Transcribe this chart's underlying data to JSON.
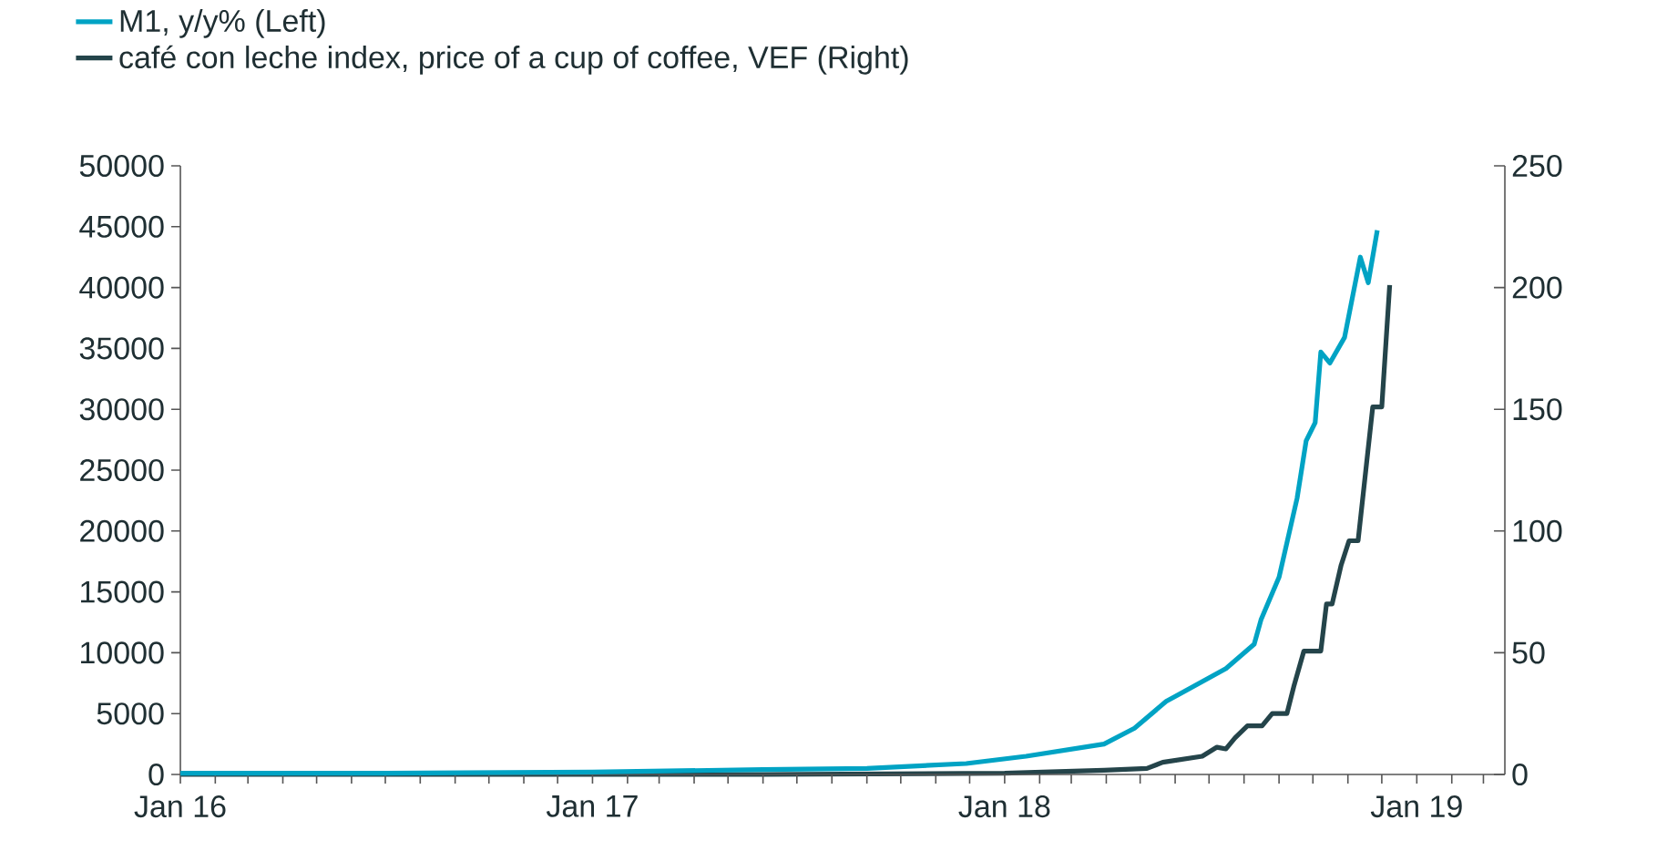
{
  "chart_data": {
    "type": "line",
    "x": [
      "2016-01-01",
      "2016-07-01",
      "2017-01-01",
      "2017-06-01",
      "2017-09-01",
      "2017-11-28",
      "2018-01-20",
      "2018-03-30",
      "2018-04-26",
      "2018-05-24",
      "2018-07-16",
      "2018-08-10",
      "2018-08-16",
      "2018-09-01",
      "2018-09-17",
      "2018-09-25",
      "2018-10-03",
      "2018-10-08",
      "2018-10-16",
      "2018-10-29",
      "2018-11-12",
      "2018-11-19",
      "2018-11-27"
    ],
    "series": [
      {
        "name": "M1, y/y% (Left)",
        "color": "#00a3c4",
        "values": [
          100,
          100,
          200,
          400,
          500,
          900,
          1500,
          2500,
          3800,
          6000,
          8700,
          10700,
          12700,
          16200,
          22700,
          27400,
          28900,
          34700,
          33800,
          35900,
          42500,
          40400,
          44700
        ]
      },
      {
        "name": "café con leche index, price of a cup of coffee, VEF (Right)",
        "color": "#24444a",
        "axis": "y2",
        "x": [
          "2016-01-01",
          "2017-06-01",
          "2018-01-01",
          "2018-03-30",
          "2018-05-07",
          "2018-05-21",
          "2018-06-25",
          "2018-07-08",
          "2018-07-16",
          "2018-07-24",
          "2018-08-04",
          "2018-08-17",
          "2018-08-26",
          "2018-09-08",
          "2018-09-14",
          "2018-09-23",
          "2018-10-08",
          "2018-10-13",
          "2018-10-18",
          "2018-10-26",
          "2018-11-02",
          "2018-11-10",
          "2018-11-23",
          "2018-12-01",
          "2018-12-08"
        ],
        "values": [
          0,
          0,
          0.5,
          1.7,
          2.5,
          5,
          7.5,
          11.2,
          10.5,
          15,
          20,
          20,
          25,
          25,
          36,
          50.7,
          50.7,
          70,
          70,
          86,
          96,
          96,
          151,
          151,
          201
        ]
      }
    ],
    "xlim": [
      "2016-01-01",
      "2019-03-20"
    ],
    "xticks": [
      {
        "value": "2016-01-01",
        "label": "Jan 16"
      },
      {
        "value": "2016-02-01",
        "label": null
      },
      {
        "value": "2016-03-01",
        "label": null
      },
      {
        "value": "2016-04-01",
        "label": null
      },
      {
        "value": "2016-05-01",
        "label": null
      },
      {
        "value": "2016-06-01",
        "label": null
      },
      {
        "value": "2016-07-01",
        "label": null
      },
      {
        "value": "2016-08-01",
        "label": null
      },
      {
        "value": "2016-09-01",
        "label": null
      },
      {
        "value": "2016-10-01",
        "label": null
      },
      {
        "value": "2016-11-01",
        "label": null
      },
      {
        "value": "2016-12-01",
        "label": null
      },
      {
        "value": "2017-01-01",
        "label": "Jan 17"
      },
      {
        "value": "2017-02-01",
        "label": null
      },
      {
        "value": "2017-03-01",
        "label": null
      },
      {
        "value": "2017-04-01",
        "label": null
      },
      {
        "value": "2017-05-01",
        "label": null
      },
      {
        "value": "2017-06-01",
        "label": null
      },
      {
        "value": "2017-07-01",
        "label": null
      },
      {
        "value": "2017-08-01",
        "label": null
      },
      {
        "value": "2017-09-01",
        "label": null
      },
      {
        "value": "2017-10-01",
        "label": null
      },
      {
        "value": "2017-11-01",
        "label": null
      },
      {
        "value": "2017-12-01",
        "label": null
      },
      {
        "value": "2018-01-01",
        "label": "Jan 18"
      },
      {
        "value": "2018-02-01",
        "label": null
      },
      {
        "value": "2018-03-01",
        "label": null
      },
      {
        "value": "2018-04-01",
        "label": null
      },
      {
        "value": "2018-05-01",
        "label": null
      },
      {
        "value": "2018-06-01",
        "label": null
      },
      {
        "value": "2018-07-01",
        "label": null
      },
      {
        "value": "2018-08-01",
        "label": null
      },
      {
        "value": "2018-09-01",
        "label": null
      },
      {
        "value": "2018-10-01",
        "label": null
      },
      {
        "value": "2018-11-01",
        "label": null
      },
      {
        "value": "2018-12-01",
        "label": null
      },
      {
        "value": "2019-01-01",
        "label": "Jan 19"
      },
      {
        "value": "2019-02-01",
        "label": null
      },
      {
        "value": "2019-03-01",
        "label": null
      }
    ],
    "ylim": [
      0,
      50000
    ],
    "yticks": [
      0,
      5000,
      10000,
      15000,
      20000,
      25000,
      30000,
      35000,
      40000,
      45000,
      50000
    ],
    "y2lim": [
      0,
      250
    ],
    "y2ticks": [
      0,
      50,
      100,
      150,
      200,
      250
    ],
    "legend": "top left"
  }
}
